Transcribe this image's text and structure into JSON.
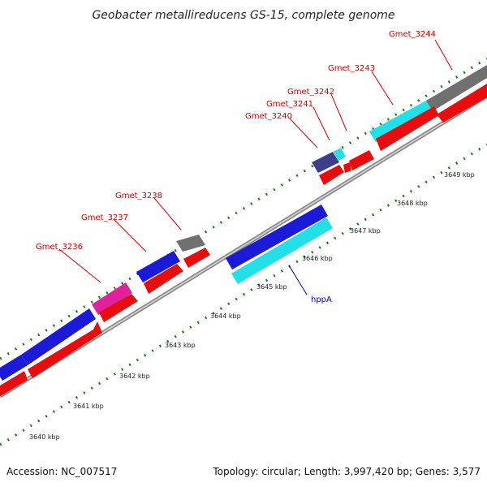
{
  "title": "Geobacter metallireducens GS-15, complete genome",
  "footer": {
    "accession": "Accession: NC_007517",
    "summary": "Topology: circular; Length: 3,997,420 bp; Genes: 3,577"
  },
  "scale": {
    "ticks": [
      "3640 kbp",
      "3641 kbp",
      "3642 kbp",
      "3643 kbp",
      "3644 kbp",
      "3645 kbp",
      "3646 kbp",
      "3647 kbp",
      "3648 kbp",
      "3649 kbp"
    ]
  },
  "colors": {
    "label_red": "#cc0000",
    "label_blue": "#0000cc",
    "tick_green": "#1e7a1e",
    "backbone": "#8a8a8a"
  },
  "gene_labels": [
    {
      "id": "gmet-3236",
      "text": "Gmet_3236",
      "color": "#cc0000"
    },
    {
      "id": "gmet-3237",
      "text": "Gmet_3237",
      "color": "#cc0000"
    },
    {
      "id": "gmet-3238",
      "text": "Gmet_3238",
      "color": "#cc0000"
    },
    {
      "id": "gmet-3240",
      "text": "Gmet_3240",
      "color": "#cc0000"
    },
    {
      "id": "gmet-3241",
      "text": "Gmet_3241",
      "color": "#cc0000"
    },
    {
      "id": "gmet-3242",
      "text": "Gmet_3242",
      "color": "#cc0000"
    },
    {
      "id": "gmet-3243",
      "text": "Gmet_3243",
      "color": "#cc0000"
    },
    {
      "id": "gmet-3244",
      "text": "Gmet_3244",
      "color": "#cc0000"
    },
    {
      "id": "hppa",
      "text": "hppA",
      "color": "#0000cc"
    }
  ]
}
